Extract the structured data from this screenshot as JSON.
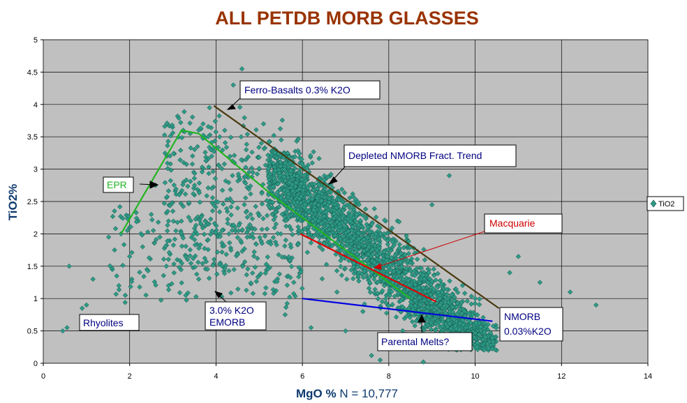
{
  "chart_data": {
    "type": "scatter",
    "title": "ALL PETDB MORB GLASSES",
    "xlabel_bold": "MgO %",
    "xlabel_rest": " N = 10,777",
    "ylabel": "TiO2%",
    "xlim": [
      0,
      14
    ],
    "ylim": [
      0,
      5
    ],
    "xticks": [
      "0",
      "2",
      "4",
      "6",
      "8",
      "10",
      "12",
      "14"
    ],
    "yticks": [
      "0",
      "0.5",
      "1",
      "1.5",
      "2",
      "2.5",
      "3",
      "3.5",
      "4",
      "4.5",
      "5"
    ],
    "grid": true,
    "legend": {
      "position": "right",
      "entries": [
        "TiO2"
      ]
    },
    "series": [
      {
        "name": "TiO2",
        "marker": "diamond",
        "color": "#2e9a86",
        "points": [
          [
            0.45,
            0.5
          ],
          [
            0.55,
            0.55
          ],
          [
            0.6,
            1.5
          ],
          [
            0.9,
            0.85
          ],
          [
            1.0,
            0.9
          ],
          [
            1.15,
            1.3
          ],
          [
            1.3,
            0.6
          ],
          [
            1.6,
            1.45
          ],
          [
            1.65,
            1.75
          ],
          [
            1.7,
            1.35
          ],
          [
            1.75,
            1.2
          ],
          [
            1.8,
            2.0
          ],
          [
            1.9,
            1.05
          ],
          [
            2.0,
            1.65
          ],
          [
            2.0,
            2.1
          ],
          [
            2.05,
            1.3
          ],
          [
            2.2,
            2.2
          ],
          [
            2.3,
            1.8
          ],
          [
            2.4,
            1.45
          ],
          [
            2.5,
            2.3
          ],
          [
            2.6,
            2.75
          ],
          [
            2.7,
            1.95
          ],
          [
            2.85,
            1.5
          ],
          [
            2.9,
            1.2
          ],
          [
            3.0,
            2.35
          ],
          [
            3.1,
            1.6
          ],
          [
            3.2,
            2.0
          ],
          [
            3.25,
            2.8
          ],
          [
            3.3,
            1.05
          ],
          [
            3.4,
            3.55
          ],
          [
            3.5,
            2.6
          ],
          [
            3.6,
            1.3
          ],
          [
            3.7,
            3.7
          ],
          [
            3.75,
            2.2
          ],
          [
            3.8,
            1.9
          ],
          [
            3.85,
            3.95
          ],
          [
            3.9,
            3.2
          ],
          [
            4.0,
            2.5
          ],
          [
            4.1,
            1.55
          ],
          [
            4.2,
            3.6
          ],
          [
            4.3,
            2.0
          ],
          [
            4.4,
            4.3
          ],
          [
            4.5,
            1.7
          ],
          [
            4.6,
            4.55
          ],
          [
            4.7,
            3.3
          ],
          [
            4.8,
            2.3
          ],
          [
            5.0,
            3.0
          ],
          [
            5.1,
            3.7
          ],
          [
            5.2,
            1.5
          ],
          [
            5.3,
            2.6
          ],
          [
            5.5,
            2.0
          ],
          [
            5.6,
            0.75
          ],
          [
            5.8,
            1.25
          ],
          [
            6.0,
            2.2
          ],
          [
            6.2,
            0.55
          ],
          [
            6.4,
            1.8
          ],
          [
            6.6,
            2.4
          ],
          [
            6.8,
            1.1
          ],
          [
            7.0,
            0.5
          ],
          [
            7.2,
            2.0
          ],
          [
            7.4,
            0.8
          ],
          [
            7.6,
            0.12
          ],
          [
            7.8,
            0.05
          ],
          [
            8.0,
            1.2
          ],
          [
            8.2,
            2.2
          ],
          [
            8.4,
            0.3
          ],
          [
            8.6,
            1.7
          ],
          [
            8.8,
            0.02
          ],
          [
            9.0,
            2.45
          ],
          [
            9.3,
            0.55
          ],
          [
            9.4,
            2.9
          ],
          [
            9.6,
            0.7
          ],
          [
            10.0,
            1.0
          ],
          [
            10.3,
            0.6
          ],
          [
            10.6,
            0.55
          ],
          [
            10.8,
            1.4
          ],
          [
            11.0,
            1.65
          ],
          [
            11.5,
            1.25
          ],
          [
            12.2,
            1.1
          ],
          [
            12.8,
            0.9
          ]
        ]
      }
    ],
    "lines": [
      {
        "name": "Ferro-Basalts trend",
        "color": "#4a3a10",
        "points": [
          [
            3.95,
            3.98
          ],
          [
            10.55,
            0.85
          ]
        ]
      },
      {
        "name": "EPR",
        "color": "#22b422",
        "points": [
          [
            1.8,
            2.0
          ],
          [
            3.2,
            3.6
          ],
          [
            3.6,
            3.55
          ],
          [
            5.3,
            2.6
          ],
          [
            8.5,
            1.0
          ]
        ]
      },
      {
        "name": "Macquarie",
        "color": "#e00000",
        "points": [
          [
            5.95,
            2.0
          ],
          [
            9.1,
            0.95
          ]
        ]
      },
      {
        "name": "NMORB",
        "color": "#0000e0",
        "points": [
          [
            6.0,
            1.0
          ],
          [
            10.4,
            0.65
          ]
        ]
      }
    ],
    "annotations": [
      {
        "text": "Ferro-Basalts 0.3% K2O",
        "color": "#000080"
      },
      {
        "text": "Depleted NMORB  Fract. Trend",
        "color": "#000080"
      },
      {
        "text": "EPR",
        "color": "#22b422"
      },
      {
        "text": "Macquarie",
        "color": "#cc0000"
      },
      {
        "text": "Rhyolites",
        "color": "#000080"
      },
      {
        "text": "3.0% K2O",
        "color": "#000080"
      },
      {
        "text": "EMORB",
        "color": "#000080"
      },
      {
        "text": "NMORB",
        "color": "#000080"
      },
      {
        "text": "0.03%K2O",
        "color": "#000080"
      },
      {
        "text": "Parental Melts?",
        "color": "#000080"
      }
    ]
  },
  "colors": {
    "plot_bg": "#c0c0c0",
    "title": "#993300",
    "axis_label": "#0d3a6e",
    "marker_fill": "#2e9a86",
    "marker_stroke": "#0f4f45"
  }
}
